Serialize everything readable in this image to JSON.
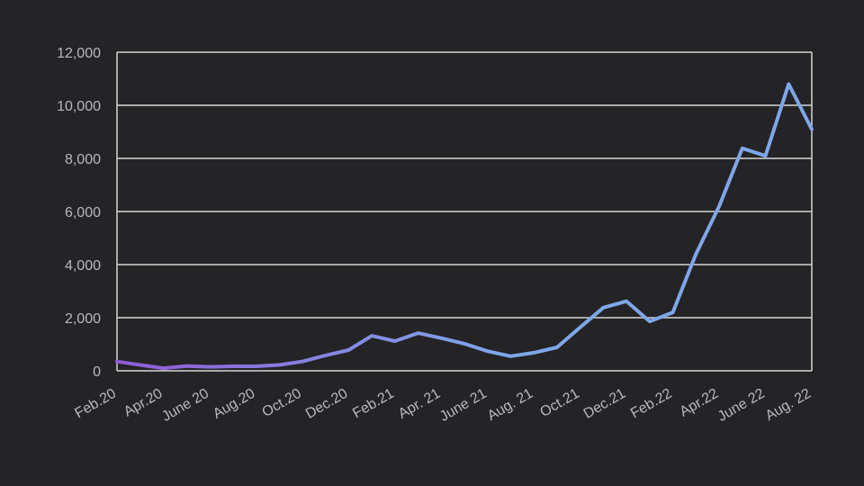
{
  "chart_data": {
    "type": "line",
    "title": "",
    "xlabel": "",
    "ylabel": "",
    "ylim": [
      0,
      12000
    ],
    "yticks": [
      0,
      2000,
      4000,
      6000,
      8000,
      10000,
      12000
    ],
    "ytick_labels": [
      "0",
      "2,000",
      "4,000",
      "6,000",
      "8,000",
      "10,000",
      "12,000"
    ],
    "grid": true,
    "x_tick_labels": [
      "Feb.20",
      "Apr.20",
      "June 20",
      "Aug.20",
      "Oct.20",
      "Dec.20",
      "Feb.21",
      "Apr. 21",
      "June 21",
      "Aug. 21",
      "Oct.21",
      "Dec.21",
      "Feb.22",
      "Apr.22",
      "June 22",
      "Aug. 22"
    ],
    "x": [
      "2020-02",
      "2020-03",
      "2020-04",
      "2020-05",
      "2020-06",
      "2020-07",
      "2020-08",
      "2020-09",
      "2020-10",
      "2020-11",
      "2020-12",
      "2021-01",
      "2021-02",
      "2021-03",
      "2021-04",
      "2021-05",
      "2021-06",
      "2021-07",
      "2021-08",
      "2021-09",
      "2021-10",
      "2021-11",
      "2021-12",
      "2022-01",
      "2022-02",
      "2022-03",
      "2022-04",
      "2022-05",
      "2022-06",
      "2022-07",
      "2022-08"
    ],
    "series": [
      {
        "values": [
          350,
          220,
          100,
          180,
          150,
          170,
          170,
          220,
          350,
          580,
          780,
          1320,
          1120,
          1420,
          1230,
          1020,
          740,
          550,
          680,
          880,
          1640,
          2380,
          2620,
          1860,
          2200,
          4400,
          6200,
          8380,
          8100,
          10800,
          9100
        ]
      }
    ],
    "line_gradient": [
      "#8f5bd6",
      "#7ea7ea"
    ],
    "colors": {
      "background": "#242326",
      "grid": "#d6d6d6",
      "tick_text": "#b9b9bd"
    }
  }
}
